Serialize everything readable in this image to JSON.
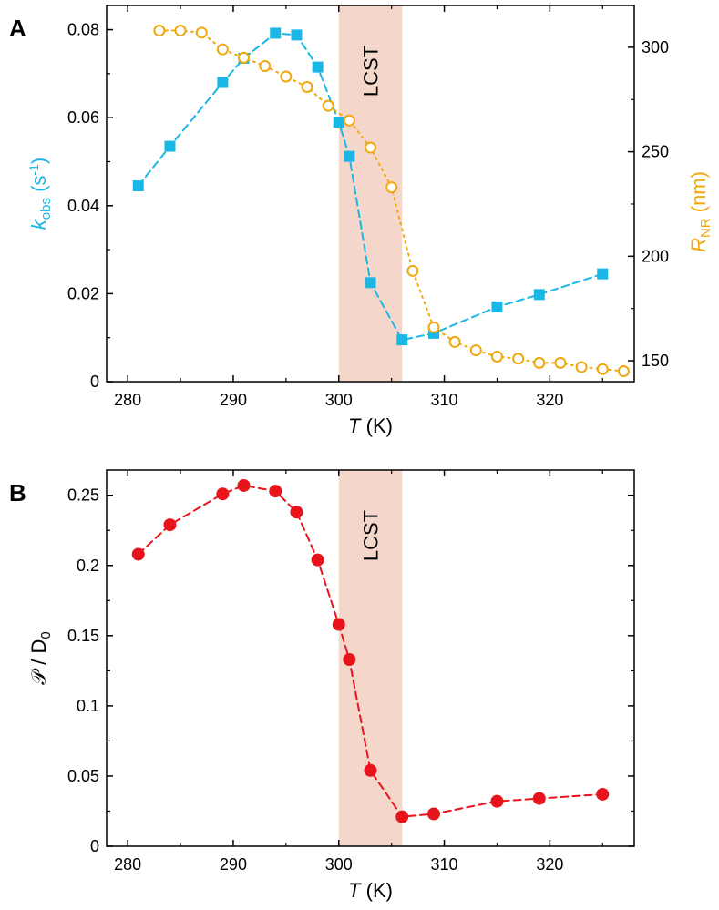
{
  "chart_data": [
    {
      "panel": "A",
      "type": "line",
      "band": {
        "x_range": [
          300,
          306
        ],
        "label": "LCST",
        "color": "#f4d6cb"
      },
      "xlabel": {
        "italic": "T",
        "rest": " (K)"
      },
      "ylabel_left": {
        "main": "k",
        "sub": "obs",
        "units": " (s",
        "sup": "-1",
        "close": ")",
        "color": "#1ab6e6"
      },
      "ylabel_right": {
        "main": "R",
        "sub": "NR",
        "units": " (nm)",
        "color": "#f0a80e"
      },
      "xlim": [
        278,
        328
      ],
      "ylim_left": [
        0,
        0.0855
      ],
      "ylim_right": [
        140,
        320
      ],
      "x_ticks": [
        280,
        290,
        300,
        310,
        320
      ],
      "y_ticks_left": [
        0,
        0.02,
        0.04,
        0.06,
        0.08
      ],
      "y_ticks_left_labels": [
        "0",
        "0.02",
        "0.04",
        "0.06",
        "0.08"
      ],
      "y_ticks_right": [
        150,
        200,
        250,
        300
      ],
      "y_ticks_right_labels": [
        "150",
        "200",
        "250",
        "300"
      ],
      "series": [
        {
          "name": "k_obs",
          "axis": "left",
          "color": "#1ab6e6",
          "marker": "square",
          "line": "dashed",
          "x": [
            281,
            284,
            289,
            291,
            294,
            296,
            298,
            300,
            301,
            303,
            306,
            309,
            315,
            319,
            325
          ],
          "y": [
            0.0445,
            0.0535,
            0.068,
            0.0735,
            0.0792,
            0.0788,
            0.0715,
            0.059,
            0.0512,
            0.0225,
            0.0095,
            0.011,
            0.017,
            0.0198,
            0.0245
          ]
        },
        {
          "name": "R_NR",
          "axis": "right",
          "color": "#f0a80e",
          "marker": "open-circle",
          "line": "dotted",
          "x": [
            283,
            285,
            287,
            289,
            291,
            293,
            295,
            297,
            299,
            301,
            303,
            305,
            307,
            309,
            311,
            313,
            315,
            317,
            319,
            321,
            323,
            325,
            327
          ],
          "y": [
            308,
            308,
            307,
            299,
            295,
            291,
            286,
            281,
            272,
            265,
            252,
            233,
            193,
            166,
            159,
            155,
            152,
            151,
            149,
            149,
            147,
            146,
            145
          ]
        }
      ]
    },
    {
      "panel": "B",
      "type": "line",
      "band": {
        "x_range": [
          300,
          306
        ],
        "label": "LCST",
        "color": "#f4d6cb"
      },
      "xlabel": {
        "italic": "T",
        "rest": " (K)"
      },
      "ylabel_left": {
        "main": "𝒫 / D",
        "sub": "0",
        "color": "#000000"
      },
      "xlim": [
        278,
        328
      ],
      "ylim_left": [
        0,
        0.268
      ],
      "x_ticks": [
        280,
        290,
        300,
        310,
        320
      ],
      "y_ticks_left": [
        0,
        0.05,
        0.1,
        0.15,
        0.2,
        0.25
      ],
      "y_ticks_left_labels": [
        "0",
        "0.05",
        "0.1",
        "0.15",
        "0.2",
        "0.25"
      ],
      "series": [
        {
          "name": "P/D0",
          "axis": "left",
          "color": "#e8141b",
          "marker": "filled-circle",
          "line": "dashed",
          "x": [
            281,
            284,
            289,
            291,
            294,
            296,
            298,
            300,
            301,
            303,
            306,
            309,
            315,
            319,
            325
          ],
          "y": [
            0.208,
            0.229,
            0.251,
            0.257,
            0.253,
            0.238,
            0.204,
            0.158,
            0.133,
            0.054,
            0.021,
            0.023,
            0.032,
            0.034,
            0.037
          ]
        }
      ]
    }
  ]
}
